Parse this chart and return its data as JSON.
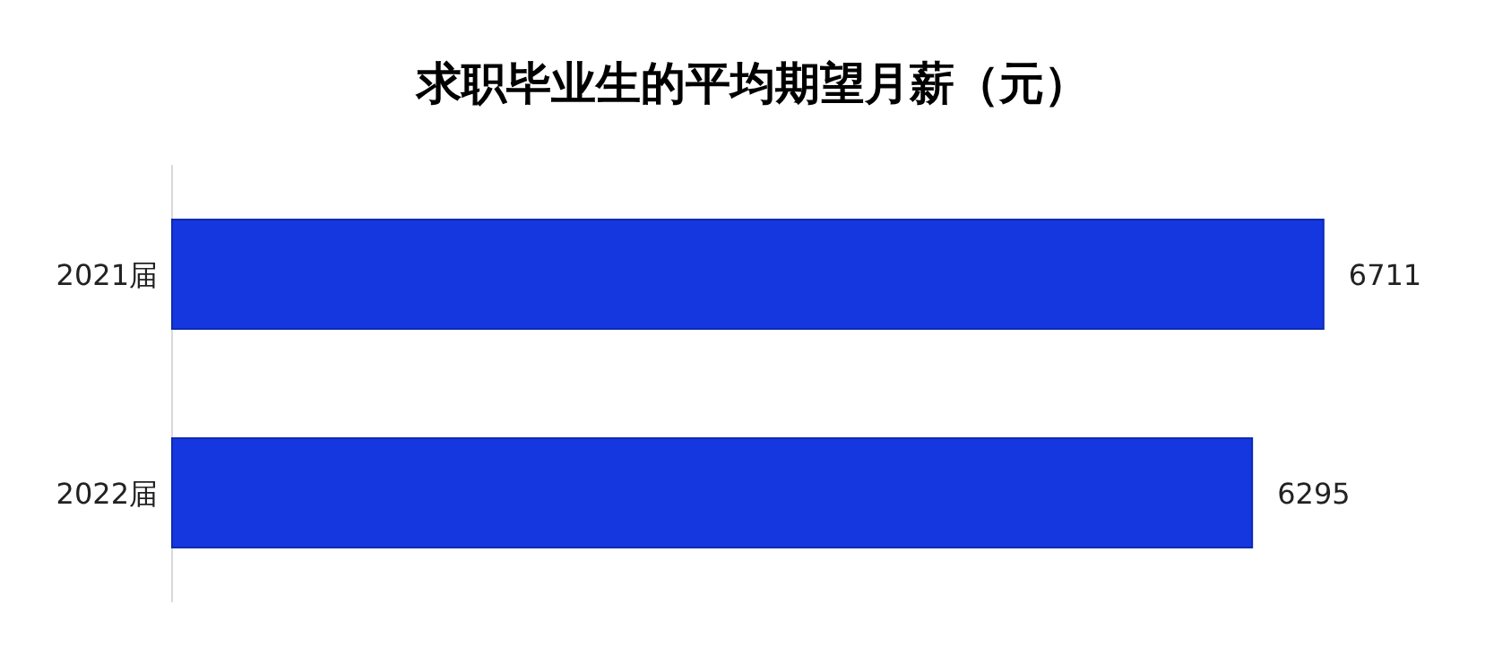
{
  "chart_data": {
    "type": "bar",
    "orientation": "horizontal",
    "title": "求职毕业生的平均期望月薪（元）",
    "categories": [
      "2021届",
      "2022届"
    ],
    "values": [
      6711,
      6295
    ],
    "color": "#1537e0",
    "data_labels": true
  }
}
